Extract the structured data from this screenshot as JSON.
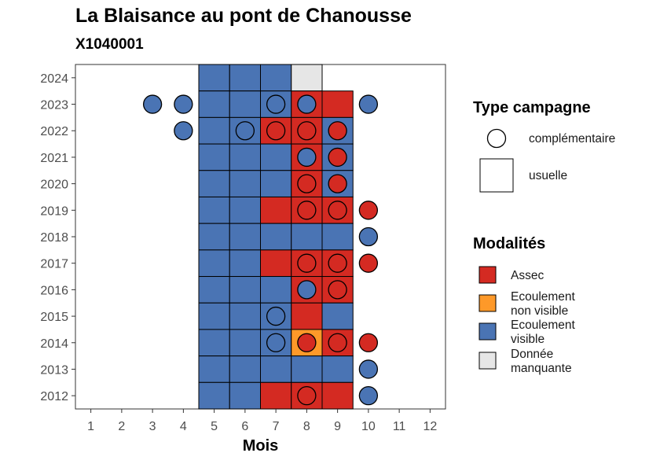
{
  "title": "La Blaisance au pont de Chanousse",
  "subtitle": "X1040001",
  "colors": {
    "Assec": "#d42a22",
    "Ecoulement non visible": "#fe9929",
    "Ecoulement visible": "#4a74b4",
    "Donnée manquante": "#e6e6e6"
  },
  "legend": {
    "type_title": "Type campagne",
    "type_items": [
      {
        "key": "complementaire",
        "label": "complémentaire",
        "shape": "circle"
      },
      {
        "key": "usuelle",
        "label": "usuelle",
        "shape": "square"
      }
    ],
    "mod_title": "Modalités",
    "mod_items": [
      {
        "key": "Assec",
        "lines": [
          "Assec"
        ]
      },
      {
        "key": "Ecoulement non visible",
        "lines": [
          "Ecoulement",
          "non visible"
        ]
      },
      {
        "key": "Ecoulement visible",
        "lines": [
          "Ecoulement",
          "visible"
        ]
      },
      {
        "key": "Donnée manquante",
        "lines": [
          "Donnée",
          "manquante"
        ]
      }
    ]
  },
  "chart_data": {
    "type": "heatmap",
    "xlabel": "Mois",
    "ylabel": "",
    "x_ticks": [
      1,
      2,
      3,
      4,
      5,
      6,
      7,
      8,
      9,
      10,
      11,
      12
    ],
    "y_ticks": [
      2012,
      2013,
      2014,
      2015,
      2016,
      2017,
      2018,
      2019,
      2020,
      2021,
      2022,
      2023,
      2024
    ],
    "xlim": [
      0.5,
      12.5
    ],
    "ylim": [
      2011.5,
      2024.5
    ],
    "usuelle": [
      {
        "year": 2024,
        "cells": [
          [
            5,
            "Ecoulement visible"
          ],
          [
            6,
            "Ecoulement visible"
          ],
          [
            7,
            "Ecoulement visible"
          ],
          [
            8,
            "Donnée manquante"
          ]
        ]
      },
      {
        "year": 2023,
        "cells": [
          [
            5,
            "Ecoulement visible"
          ],
          [
            6,
            "Ecoulement visible"
          ],
          [
            7,
            "Ecoulement visible"
          ],
          [
            8,
            "Assec"
          ],
          [
            9,
            "Assec"
          ]
        ]
      },
      {
        "year": 2022,
        "cells": [
          [
            5,
            "Ecoulement visible"
          ],
          [
            6,
            "Ecoulement visible"
          ],
          [
            7,
            "Assec"
          ],
          [
            8,
            "Assec"
          ],
          [
            9,
            "Ecoulement visible"
          ]
        ]
      },
      {
        "year": 2021,
        "cells": [
          [
            5,
            "Ecoulement visible"
          ],
          [
            6,
            "Ecoulement visible"
          ],
          [
            7,
            "Ecoulement visible"
          ],
          [
            8,
            "Assec"
          ],
          [
            9,
            "Ecoulement visible"
          ]
        ]
      },
      {
        "year": 2020,
        "cells": [
          [
            5,
            "Ecoulement visible"
          ],
          [
            6,
            "Ecoulement visible"
          ],
          [
            7,
            "Ecoulement visible"
          ],
          [
            8,
            "Assec"
          ],
          [
            9,
            "Ecoulement visible"
          ]
        ]
      },
      {
        "year": 2019,
        "cells": [
          [
            5,
            "Ecoulement visible"
          ],
          [
            6,
            "Ecoulement visible"
          ],
          [
            7,
            "Assec"
          ],
          [
            8,
            "Assec"
          ],
          [
            9,
            "Assec"
          ]
        ]
      },
      {
        "year": 2018,
        "cells": [
          [
            5,
            "Ecoulement visible"
          ],
          [
            6,
            "Ecoulement visible"
          ],
          [
            7,
            "Ecoulement visible"
          ],
          [
            8,
            "Ecoulement visible"
          ],
          [
            9,
            "Ecoulement visible"
          ]
        ]
      },
      {
        "year": 2017,
        "cells": [
          [
            5,
            "Ecoulement visible"
          ],
          [
            6,
            "Ecoulement visible"
          ],
          [
            7,
            "Assec"
          ],
          [
            8,
            "Assec"
          ],
          [
            9,
            "Assec"
          ]
        ]
      },
      {
        "year": 2016,
        "cells": [
          [
            5,
            "Ecoulement visible"
          ],
          [
            6,
            "Ecoulement visible"
          ],
          [
            7,
            "Ecoulement visible"
          ],
          [
            8,
            "Assec"
          ],
          [
            9,
            "Assec"
          ]
        ]
      },
      {
        "year": 2015,
        "cells": [
          [
            5,
            "Ecoulement visible"
          ],
          [
            6,
            "Ecoulement visible"
          ],
          [
            7,
            "Ecoulement visible"
          ],
          [
            8,
            "Assec"
          ],
          [
            9,
            "Ecoulement visible"
          ]
        ]
      },
      {
        "year": 2014,
        "cells": [
          [
            5,
            "Ecoulement visible"
          ],
          [
            6,
            "Ecoulement visible"
          ],
          [
            7,
            "Ecoulement visible"
          ],
          [
            8,
            "Ecoulement non visible"
          ],
          [
            9,
            "Assec"
          ]
        ]
      },
      {
        "year": 2013,
        "cells": [
          [
            5,
            "Ecoulement visible"
          ],
          [
            6,
            "Ecoulement visible"
          ],
          [
            7,
            "Ecoulement visible"
          ],
          [
            8,
            "Ecoulement visible"
          ],
          [
            9,
            "Ecoulement visible"
          ]
        ]
      },
      {
        "year": 2012,
        "cells": [
          [
            5,
            "Ecoulement visible"
          ],
          [
            6,
            "Ecoulement visible"
          ],
          [
            7,
            "Assec"
          ],
          [
            8,
            "Assec"
          ],
          [
            9,
            "Assec"
          ]
        ]
      }
    ],
    "complementaire": [
      {
        "year": 2023,
        "points": [
          [
            3,
            "Ecoulement visible"
          ],
          [
            4,
            "Ecoulement visible"
          ],
          [
            7,
            "Ecoulement visible"
          ],
          [
            8,
            "Ecoulement visible"
          ],
          [
            10,
            "Ecoulement visible"
          ]
        ]
      },
      {
        "year": 2022,
        "points": [
          [
            4,
            "Ecoulement visible"
          ],
          [
            6,
            "Ecoulement visible"
          ],
          [
            7,
            "Assec"
          ],
          [
            8,
            "Assec"
          ],
          [
            9,
            "Assec"
          ]
        ]
      },
      {
        "year": 2021,
        "points": [
          [
            8,
            "Ecoulement visible"
          ],
          [
            9,
            "Assec"
          ]
        ]
      },
      {
        "year": 2020,
        "points": [
          [
            8,
            "Assec"
          ],
          [
            9,
            "Assec"
          ]
        ]
      },
      {
        "year": 2019,
        "points": [
          [
            8,
            "Assec"
          ],
          [
            9,
            "Assec"
          ],
          [
            10,
            "Assec"
          ]
        ]
      },
      {
        "year": 2018,
        "points": [
          [
            10,
            "Ecoulement visible"
          ]
        ]
      },
      {
        "year": 2017,
        "points": [
          [
            8,
            "Assec"
          ],
          [
            9,
            "Assec"
          ],
          [
            10,
            "Assec"
          ]
        ]
      },
      {
        "year": 2016,
        "points": [
          [
            8,
            "Ecoulement visible"
          ],
          [
            9,
            "Assec"
          ]
        ]
      },
      {
        "year": 2015,
        "points": [
          [
            7,
            "Ecoulement visible"
          ]
        ]
      },
      {
        "year": 2014,
        "points": [
          [
            7,
            "Ecoulement visible"
          ],
          [
            8,
            "Assec"
          ],
          [
            9,
            "Assec"
          ],
          [
            10,
            "Assec"
          ]
        ]
      },
      {
        "year": 2013,
        "points": [
          [
            10,
            "Ecoulement visible"
          ]
        ]
      },
      {
        "year": 2012,
        "points": [
          [
            8,
            "Assec"
          ],
          [
            10,
            "Ecoulement visible"
          ]
        ]
      }
    ]
  }
}
